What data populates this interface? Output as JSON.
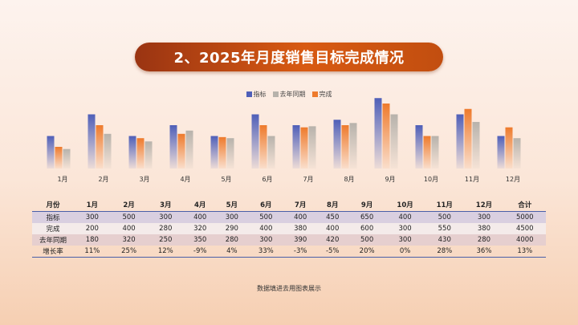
{
  "title": "2、2025年月度销售目标完成情况",
  "legend": [
    "指标",
    "去年同期",
    "完成"
  ],
  "colors": {
    "target": "#4f5fb8",
    "last_year": "#b7b2ab",
    "done": "#ee7a2c"
  },
  "chart_data": {
    "type": "bar",
    "categories": [
      "1月",
      "2月",
      "3月",
      "4月",
      "5月",
      "6月",
      "7月",
      "8月",
      "9月",
      "10月",
      "11月",
      "12月"
    ],
    "series": [
      {
        "name": "指标",
        "values": [
          300,
          500,
          300,
          400,
          300,
          500,
          400,
          450,
          650,
          400,
          500,
          300
        ]
      },
      {
        "name": "完成",
        "values": [
          200,
          400,
          280,
          320,
          290,
          400,
          380,
          400,
          600,
          300,
          550,
          380
        ]
      },
      {
        "name": "去年同期",
        "values": [
          180,
          320,
          250,
          350,
          280,
          300,
          390,
          420,
          500,
          300,
          430,
          280
        ]
      }
    ],
    "ylim": [
      0,
      700
    ]
  },
  "table": {
    "header": [
      "月份",
      "1月",
      "2月",
      "3月",
      "4月",
      "5月",
      "6月",
      "7月",
      "8月",
      "9月",
      "10月",
      "11月",
      "12月",
      "合计"
    ],
    "rows": [
      [
        "指标",
        "300",
        "500",
        "300",
        "400",
        "300",
        "500",
        "400",
        "450",
        "650",
        "400",
        "500",
        "300",
        "5000"
      ],
      [
        "完成",
        "200",
        "400",
        "280",
        "320",
        "290",
        "400",
        "380",
        "400",
        "600",
        "300",
        "550",
        "380",
        "4500"
      ],
      [
        "去年同期",
        "180",
        "320",
        "250",
        "350",
        "280",
        "300",
        "390",
        "420",
        "500",
        "300",
        "430",
        "280",
        "4000"
      ],
      [
        "增长率",
        "11%",
        "25%",
        "12%",
        "-9%",
        "4%",
        "33%",
        "-3%",
        "-5%",
        "20%",
        "0%",
        "28%",
        "36%",
        "13%"
      ]
    ]
  },
  "note": "数据填进去用图表展示"
}
